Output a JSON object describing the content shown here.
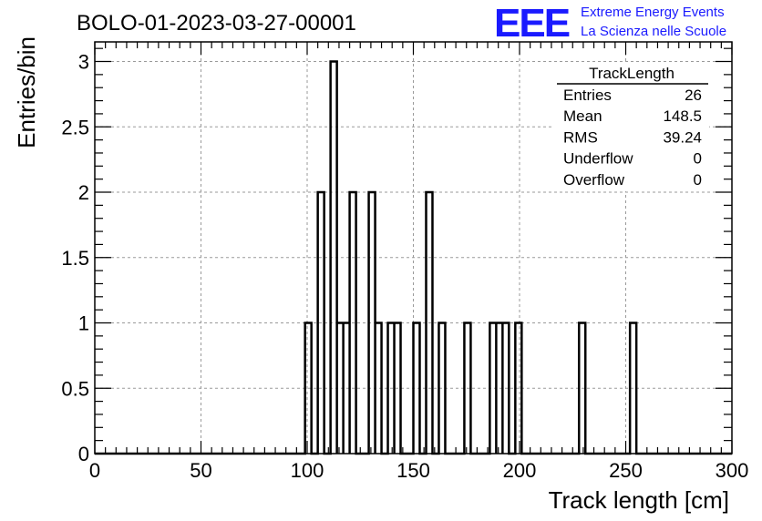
{
  "title": "BOLO-01-2023-03-27-00001",
  "logo": {
    "mark": "EEE",
    "line1": "Extreme Energy Events",
    "line2": "La Scienza nelle Scuole",
    "color": "#1a1aff"
  },
  "stats": {
    "name": "TrackLength",
    "rows": [
      {
        "label": "Entries",
        "value": "26"
      },
      {
        "label": "Mean",
        "value": "148.5"
      },
      {
        "label": "RMS",
        "value": "39.24"
      },
      {
        "label": "Underflow",
        "value": "0"
      },
      {
        "label": "Overflow",
        "value": "0"
      }
    ]
  },
  "chart_data": {
    "type": "bar",
    "histogram": true,
    "title": "BOLO-01-2023-03-27-00001",
    "xlabel": "Track length [cm]",
    "ylabel": "Entries/bin",
    "xlim": [
      0,
      300
    ],
    "ylim": [
      0,
      3.15
    ],
    "grid": true,
    "bin_width": 3,
    "x_ticks": [
      "0",
      "50",
      "100",
      "150",
      "200",
      "250",
      "300"
    ],
    "y_ticks": [
      "0",
      "0.5",
      "1",
      "1.5",
      "2",
      "2.5",
      "3"
    ],
    "bins": [
      {
        "x": 99,
        "y": 1
      },
      {
        "x": 105,
        "y": 2
      },
      {
        "x": 111,
        "y": 3
      },
      {
        "x": 114,
        "y": 1
      },
      {
        "x": 117,
        "y": 1
      },
      {
        "x": 120,
        "y": 2
      },
      {
        "x": 129,
        "y": 2
      },
      {
        "x": 132,
        "y": 1
      },
      {
        "x": 138,
        "y": 1
      },
      {
        "x": 141,
        "y": 1
      },
      {
        "x": 150,
        "y": 1
      },
      {
        "x": 156,
        "y": 2
      },
      {
        "x": 162,
        "y": 1
      },
      {
        "x": 174,
        "y": 1
      },
      {
        "x": 186,
        "y": 1
      },
      {
        "x": 189,
        "y": 1
      },
      {
        "x": 192,
        "y": 1
      },
      {
        "x": 198,
        "y": 1
      },
      {
        "x": 228,
        "y": 1
      },
      {
        "x": 252,
        "y": 1
      }
    ]
  }
}
